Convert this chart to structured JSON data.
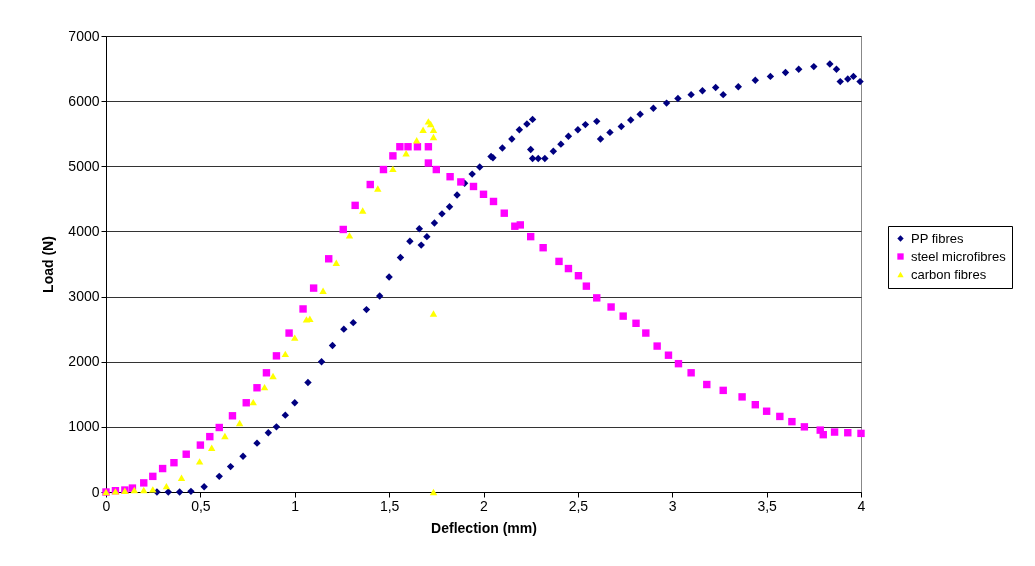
{
  "chart_data": {
    "type": "scatter",
    "xlabel": "Deflection (mm)",
    "ylabel": "Load (N)",
    "xlim": [
      0,
      4
    ],
    "ylim": [
      0,
      7000
    ],
    "xticks": [
      0,
      {
        "value": 0.5,
        "label": "0,5"
      },
      1,
      {
        "value": 1.5,
        "label": "1,5"
      },
      2,
      {
        "value": 2.5,
        "label": "2,5"
      },
      3,
      {
        "value": 3.5,
        "label": "3,5"
      },
      4
    ],
    "yticks": [
      0,
      1000,
      2000,
      3000,
      4000,
      5000,
      6000,
      7000
    ],
    "grid": "y",
    "legend": "right",
    "series": [
      {
        "name": "PP fibres",
        "color": "#000080",
        "marker": "diamond",
        "x": [
          0.27,
          0.33,
          0.39,
          0.45,
          0.52,
          0.6,
          0.66,
          0.726,
          0.8,
          0.86,
          0.903,
          0.95,
          1.0,
          1.07,
          1.142,
          1.2,
          1.26,
          1.31,
          1.38,
          1.45,
          1.5,
          1.56,
          1.61,
          1.66,
          1.67,
          1.7,
          1.74,
          1.78,
          1.82,
          1.86,
          1.9,
          1.94,
          1.98,
          2.04,
          2.05,
          2.1,
          2.15,
          2.19,
          2.23,
          2.26,
          2.25,
          2.26,
          2.29,
          2.325,
          2.37,
          2.41,
          2.45,
          2.5,
          2.54,
          2.6,
          2.62,
          2.67,
          2.73,
          2.78,
          2.83,
          2.9,
          2.97,
          3.03,
          3.1,
          3.16,
          3.23,
          3.27,
          3.35,
          3.44,
          3.52,
          3.6,
          3.67,
          3.75,
          3.835,
          3.87,
          3.89,
          3.93,
          3.96,
          3.995
        ],
        "values": [
          0,
          0,
          0,
          10,
          80,
          240,
          390,
          550,
          750,
          910,
          1000,
          1180,
          1370,
          1680,
          2000,
          2250,
          2500,
          2600,
          2800,
          3010,
          3300,
          3600,
          3850,
          4040,
          3790,
          3920,
          4130,
          4270,
          4380,
          4560,
          4740,
          4880,
          4990,
          5150,
          5130,
          5280,
          5420,
          5560,
          5650,
          5720,
          5257,
          5120,
          5120,
          5120,
          5230,
          5340,
          5460,
          5560,
          5640,
          5690,
          5420,
          5520,
          5610,
          5710,
          5800,
          5890,
          5970,
          6040,
          6100,
          6160,
          6210,
          6100,
          6220,
          6320,
          6380,
          6440,
          6490,
          6530,
          6570,
          6490,
          6300,
          6340,
          6380,
          6300
        ]
      },
      {
        "name": "steel microfibres",
        "color": "#ff00ff",
        "marker": "square",
        "x": [
          0,
          0.05,
          0.1,
          0.14,
          0.2,
          0.248,
          0.3,
          0.36,
          0.425,
          0.5,
          0.55,
          0.6,
          0.67,
          0.743,
          0.8,
          0.85,
          0.903,
          0.97,
          1.044,
          1.1,
          1.18,
          1.257,
          1.32,
          1.4,
          1.47,
          1.52,
          1.557,
          1.6,
          1.65,
          1.708,
          1.708,
          1.75,
          1.823,
          1.88,
          1.947,
          2.0,
          2.053,
          2.11,
          2.166,
          2.195,
          2.25,
          2.316,
          2.4,
          2.45,
          2.503,
          2.545,
          2.6,
          2.676,
          2.74,
          2.808,
          2.86,
          2.92,
          2.98,
          3.033,
          3.1,
          3.183,
          3.27,
          3.37,
          3.44,
          3.5,
          3.57,
          3.634,
          3.7,
          3.784,
          3.8,
          3.86,
          3.93,
          4.0
        ],
        "values": [
          0,
          20,
          30,
          60,
          140,
          240,
          360,
          450,
          580,
          720,
          850,
          990,
          1170,
          1370,
          1600,
          1830,
          2090,
          2440,
          2810,
          3130,
          3580,
          4030,
          4400,
          4720,
          4950,
          5160,
          5300,
          5300,
          5300,
          5300,
          5050,
          4950,
          4840,
          4760,
          4690,
          4570,
          4460,
          4280,
          4080,
          4100,
          3920,
          3750,
          3540,
          3430,
          3320,
          3160,
          2980,
          2840,
          2700,
          2590,
          2440,
          2240,
          2100,
          1970,
          1830,
          1650,
          1560,
          1460,
          1340,
          1240,
          1160,
          1080,
          1000,
          950,
          880,
          920,
          910,
          900
        ]
      },
      {
        "name": "carbon fibres",
        "color": "#ffff00",
        "marker": "triangle",
        "x": [
          0,
          0.05,
          0.1,
          0.15,
          0.2,
          0.248,
          0.32,
          0.4,
          0.496,
          0.56,
          0.63,
          0.708,
          0.78,
          0.84,
          0.885,
          0.95,
          1.0,
          1.062,
          1.08,
          1.15,
          1.22,
          1.29,
          1.36,
          1.44,
          1.52,
          1.59,
          1.646,
          1.68,
          1.708,
          1.72,
          1.735,
          1.735,
          1.735,
          1.735
        ],
        "values": [
          0,
          10,
          20,
          30,
          30,
          40,
          90,
          220,
          470,
          680,
          860,
          1060,
          1380,
          1610,
          1780,
          2120,
          2370,
          2650,
          2660,
          3090,
          3520,
          3940,
          4320,
          4660,
          4960,
          5200,
          5400,
          5560,
          5690,
          5650,
          5560,
          5450,
          2740,
          0
        ]
      }
    ]
  }
}
